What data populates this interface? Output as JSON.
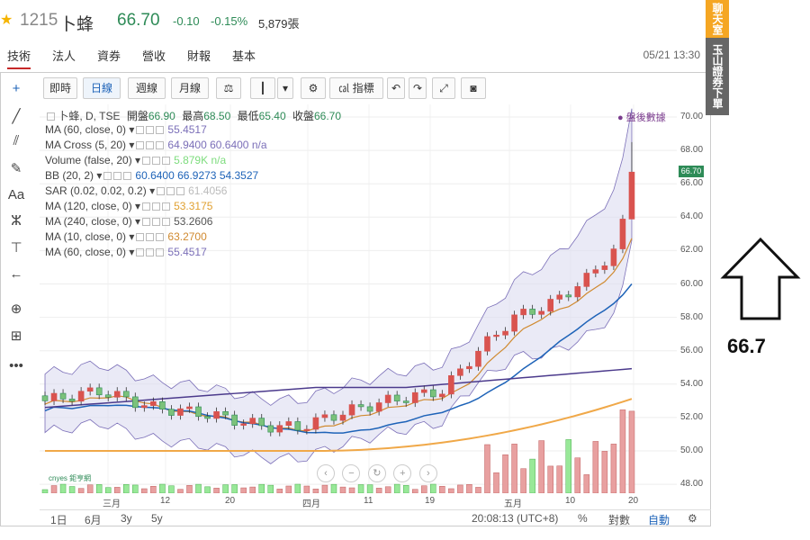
{
  "header": {
    "star_icon": "star-icon",
    "code": "1215",
    "name": "卜蜂",
    "price": "66.70",
    "change": "-0.10",
    "change_pct": "-0.15%",
    "volume": "5,879張"
  },
  "tabs": {
    "items": [
      "技術",
      "法人",
      "資券",
      "營收",
      "財報",
      "基本"
    ],
    "active": "技術",
    "datetime": "05/21 13:30"
  },
  "toolbar": {
    "realtime": "即時",
    "daily": "日線",
    "weekly": "週線",
    "monthly": "月線",
    "indicators": "指標"
  },
  "legend": {
    "main": "卜蜂, D, TSE",
    "open_label": "開盤",
    "open": "66.90",
    "high_label": "最高",
    "high": "68.50",
    "low_label": "最低",
    "low": "65.40",
    "close_label": "收盤",
    "close": "66.70",
    "after_hours": "● 盤後數據",
    "studies": [
      {
        "name": "MA (60, close, 0)",
        "values": "55.4517",
        "color": "#7b6fb8"
      },
      {
        "name": "MA Cross (5, 20)",
        "values": "64.9400 60.6400 n/a",
        "color": "#7b6fb8"
      },
      {
        "name": "Volume (false, 20)",
        "values": "5.879K n/a",
        "color": "#7ddc7d"
      },
      {
        "name": "BB (20, 2)",
        "values": "60.6400 66.9273 54.3527",
        "color": "#1e63b8"
      },
      {
        "name": "SAR (0.02, 0.02, 0.2)",
        "values": "61.4056",
        "color": "#bbbbbb"
      },
      {
        "name": "MA (120, close, 0)",
        "values": "53.3175",
        "color": "#e0a030"
      },
      {
        "name": "MA (240, close, 0)",
        "values": "53.2606",
        "color": "#555555"
      },
      {
        "name": "MA (10, close, 0)",
        "values": "63.2700",
        "color": "#d08a30"
      },
      {
        "name": "MA (60, close, 0)",
        "values": "55.4517",
        "color": "#7b6fb8"
      }
    ]
  },
  "axis": {
    "y_ticks": [
      "70.00",
      "68.00",
      "66.00",
      "64.00",
      "62.00",
      "60.00",
      "58.00",
      "56.00",
      "54.00",
      "52.00",
      "50.00",
      "48.00"
    ],
    "x_ticks": [
      "三月",
      "12",
      "20",
      "四月",
      "11",
      "19",
      "五月",
      "10",
      "20"
    ],
    "price_tag": "66.70"
  },
  "bottom_bar": {
    "ranges": [
      "1日",
      "6月",
      "3y",
      "5y"
    ],
    "time": "20:08:13 (UTC+8)",
    "pct": "%",
    "log": "對數",
    "auto": "自動"
  },
  "sidebar": {
    "chat": "聊天室",
    "broker": "玉山證券下單"
  },
  "annotation": {
    "value": "66.7"
  },
  "watermark": "cnyes 鉅亨網",
  "colors": {
    "up": "#d9534f",
    "down": "#2e8b57",
    "bb_fill": "#dcdcf0",
    "accent": "#1e63b8"
  }
}
